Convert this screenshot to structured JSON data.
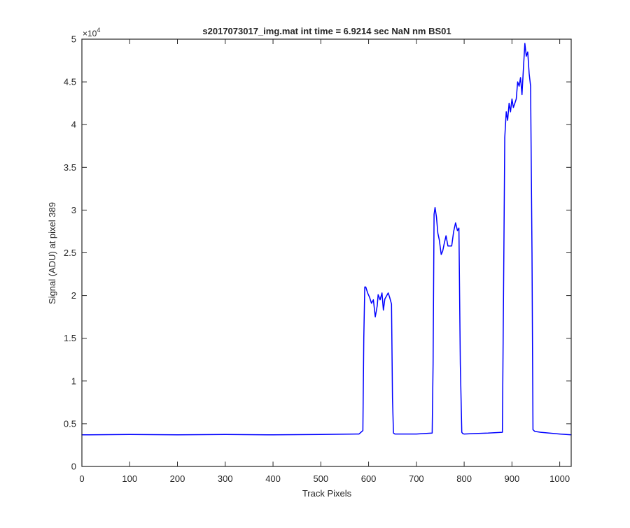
{
  "chart_data": {
    "type": "line",
    "title": "s2017073017_img.mat int time = 6.9214 sec  NaN nm BS01",
    "xlabel": "Track Pixels",
    "ylabel": "Signal (ADU) at pixel 389",
    "xlim": [
      0,
      1024
    ],
    "ylim": [
      0,
      50000
    ],
    "x_ticks": [
      0,
      100,
      200,
      300,
      400,
      500,
      600,
      700,
      800,
      900,
      1000
    ],
    "y_ticks": [
      0,
      0.5,
      1,
      1.5,
      2,
      2.5,
      3,
      3.5,
      4,
      4.5,
      5
    ],
    "y_exponent_label": "×10",
    "y_exponent_power": "4",
    "grid": false,
    "line_color": "#0000ff",
    "series": [
      {
        "x": [
          0,
          100,
          200,
          300,
          400,
          500,
          580,
          588,
          590,
          592,
          594,
          598,
          602,
          606,
          610,
          614,
          618,
          620,
          624,
          628,
          631,
          634,
          638,
          641,
          644,
          648,
          650,
          652,
          655,
          660,
          700,
          733,
          735,
          737,
          739,
          742,
          745,
          748,
          752,
          755,
          758,
          762,
          766,
          770,
          774,
          778,
          782,
          786,
          789,
          792,
          795,
          797,
          800,
          820,
          850,
          880,
          883,
          885,
          888,
          891,
          894,
          897,
          900,
          903,
          906,
          909,
          912,
          915,
          918,
          921,
          924,
          927,
          930,
          933,
          936,
          939,
          942,
          944,
          948,
          960,
          1000,
          1024
        ],
        "y": [
          3700,
          3750,
          3700,
          3750,
          3700,
          3750,
          3800,
          4200,
          15000,
          21000,
          21000,
          20300,
          19800,
          19100,
          19500,
          17500,
          18800,
          20100,
          19500,
          20300,
          18300,
          19600,
          20000,
          20300,
          19800,
          19000,
          8000,
          3900,
          3800,
          3800,
          3800,
          3900,
          12000,
          29500,
          30300,
          29200,
          27300,
          26500,
          24800,
          25200,
          26000,
          27000,
          25800,
          25800,
          25800,
          27500,
          28500,
          27600,
          27900,
          12000,
          4000,
          3850,
          3800,
          3850,
          3900,
          4000,
          25000,
          38500,
          41500,
          40500,
          42500,
          41500,
          43000,
          42000,
          42500,
          43000,
          45000,
          44500,
          45500,
          43500,
          46500,
          49500,
          48000,
          48500,
          46000,
          44500,
          25000,
          4300,
          4100,
          4000,
          3800,
          3700
        ]
      }
    ]
  }
}
